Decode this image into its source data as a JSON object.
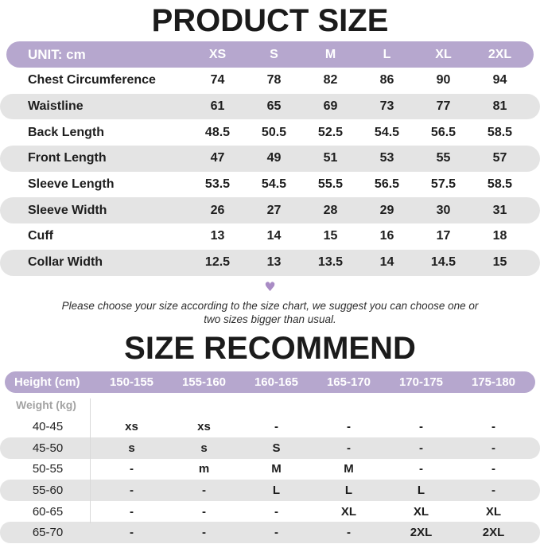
{
  "product_size": {
    "title": "PRODUCT SIZE",
    "unit_label": "UNIT: cm",
    "sizes": [
      "XS",
      "S",
      "M",
      "L",
      "XL",
      "2XL"
    ],
    "rows": [
      {
        "label": "Chest Circumference",
        "values": [
          "74",
          "78",
          "82",
          "86",
          "90",
          "94"
        ]
      },
      {
        "label": "Waistline",
        "values": [
          "61",
          "65",
          "69",
          "73",
          "77",
          "81"
        ]
      },
      {
        "label": "Back Length",
        "values": [
          "48.5",
          "50.5",
          "52.5",
          "54.5",
          "56.5",
          "58.5"
        ]
      },
      {
        "label": "Front Length",
        "values": [
          "47",
          "49",
          "51",
          "53",
          "55",
          "57"
        ]
      },
      {
        "label": "Sleeve Length",
        "values": [
          "53.5",
          "54.5",
          "55.5",
          "56.5",
          "57.5",
          "58.5"
        ]
      },
      {
        "label": "Sleeve Width",
        "values": [
          "26",
          "27",
          "28",
          "29",
          "30",
          "31"
        ]
      },
      {
        "label": "Cuff",
        "values": [
          "13",
          "14",
          "15",
          "16",
          "17",
          "18"
        ]
      },
      {
        "label": "Collar Width",
        "values": [
          "12.5",
          "13",
          "13.5",
          "14",
          "14.5",
          "15"
        ]
      }
    ]
  },
  "note": {
    "icon": "heart-icon",
    "heart_glyph": "♥",
    "text": "Please choose your size according to the size chart, we suggest you can choose one or two sizes bigger than usual."
  },
  "size_recommend": {
    "title": "SIZE RECOMMEND",
    "height_label": "Height (cm)",
    "weight_label": "Weight (kg)",
    "height_ranges": [
      "150-155",
      "155-160",
      "160-165",
      "165-170",
      "170-175",
      "175-180"
    ],
    "rows": [
      {
        "label": "40-45",
        "values": [
          "xs",
          "xs",
          "-",
          "-",
          "-",
          "-"
        ]
      },
      {
        "label": "45-50",
        "values": [
          "s",
          "s",
          "S",
          "-",
          "-",
          "-"
        ]
      },
      {
        "label": "50-55",
        "values": [
          "-",
          "m",
          "M",
          "M",
          "-",
          "-"
        ]
      },
      {
        "label": "55-60",
        "values": [
          "-",
          "-",
          "L",
          "L",
          "L",
          "-"
        ]
      },
      {
        "label": "60-65",
        "values": [
          "-",
          "-",
          "-",
          "XL",
          "XL",
          "XL"
        ]
      },
      {
        "label": "65-70",
        "values": [
          "-",
          "-",
          "-",
          "-",
          "2XL",
          "2XL"
        ]
      }
    ]
  },
  "colors": {
    "accent_purple": "#b6a7ce",
    "heart_purple": "#a98cc5",
    "stripe_gray": "#e4e4e4"
  }
}
